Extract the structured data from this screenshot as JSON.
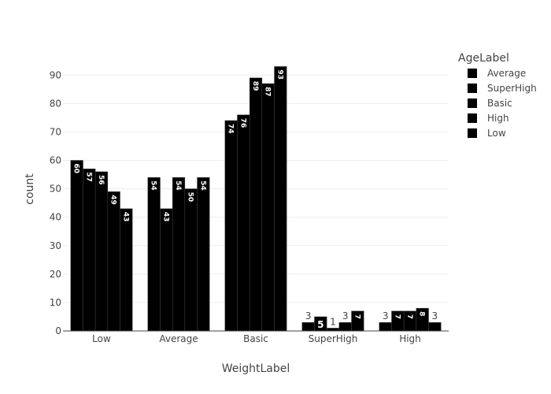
{
  "chart_data": {
    "type": "bar",
    "barmode": "group",
    "xlabel": "WeightLabel",
    "ylabel": "count",
    "categories": [
      "Low",
      "Average",
      "Basic",
      "SuperHigh",
      "High"
    ],
    "y_ticks": [
      0,
      10,
      20,
      30,
      40,
      50,
      60,
      70,
      80,
      90
    ],
    "ylim": [
      0,
      97
    ],
    "grid": true,
    "legend": {
      "title": "AgeLabel",
      "placement": "top-right"
    },
    "series": [
      {
        "name": "Average",
        "values": [
          60,
          54,
          74,
          3,
          3
        ],
        "color": "#000000"
      },
      {
        "name": "SuperHigh",
        "values": [
          57,
          43,
          76,
          5,
          7
        ],
        "color": "#000000"
      },
      {
        "name": "Basic",
        "values": [
          56,
          54,
          89,
          1,
          7
        ],
        "color": "#000000"
      },
      {
        "name": "High",
        "values": [
          49,
          50,
          87,
          3,
          8
        ],
        "color": "#000000"
      },
      {
        "name": "Low",
        "values": [
          43,
          54,
          93,
          7,
          3
        ],
        "color": "#000000"
      }
    ]
  }
}
